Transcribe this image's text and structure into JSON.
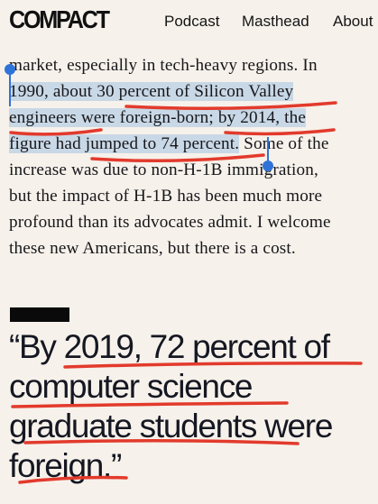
{
  "header": {
    "logo": "COMPACT",
    "nav": [
      "Podcast",
      "Masthead",
      "About"
    ]
  },
  "article": {
    "line1": "market, especially in tech-heavy regions. In",
    "line2a": "1990, about 30 percent of Silicon Valley",
    "line3a": "engineers were foreign-born; by 2014, the",
    "line4a": "figure had jumped to 74 percent.",
    "line4b": " Some of the",
    "line5": "increase was due to non-H-1B immigration,",
    "line6": "but the impact of H-1B has been much more",
    "line7": "profound than its advocates admit. I welcome",
    "line8": "these new Americans, but there is a cost."
  },
  "pullquote": {
    "line1": "“By 2019, 72 percent of",
    "line2": "computer science",
    "line3": "graduate students were",
    "line4": "foreign.”"
  },
  "colors": {
    "selection": "#c9d8e6",
    "handle": "#2f73d8",
    "annotation": "#e23a2c",
    "background": "#f6f1ea"
  }
}
